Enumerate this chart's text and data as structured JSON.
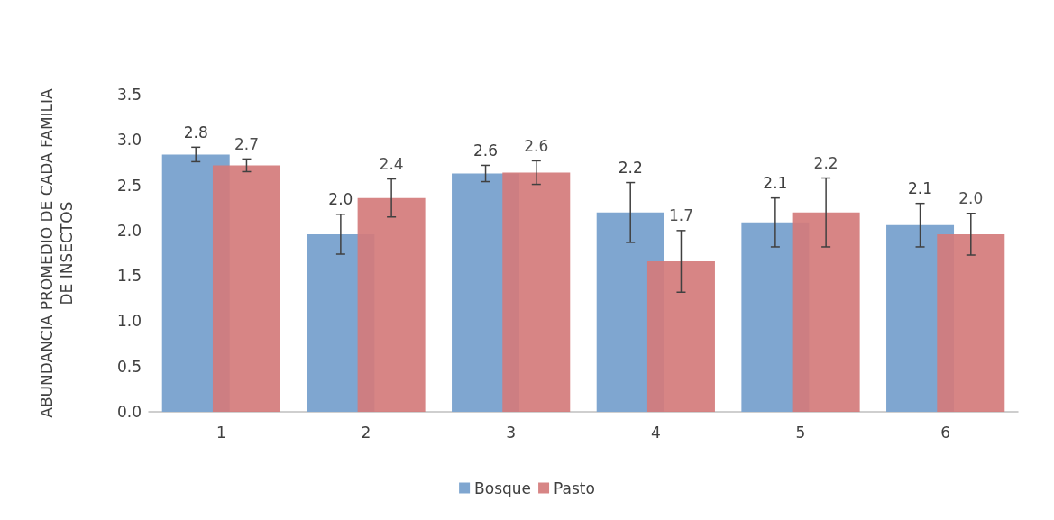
{
  "chart_data": {
    "type": "bar",
    "ylabel": "ABUNDANCIA PROMEDIO DE CADA FAMILIA DE INSECTOS",
    "categories": [
      "1",
      "2",
      "3",
      "4",
      "5",
      "6"
    ],
    "series": [
      {
        "name": "Bosque",
        "color": "#7fa6d0",
        "values": [
          2.84,
          1.96,
          2.63,
          2.2,
          2.09,
          2.06
        ],
        "errors": [
          0.08,
          0.22,
          0.09,
          0.33,
          0.27,
          0.24
        ],
        "value_labels": [
          "2.8",
          "2.0",
          "2.6",
          "2.2",
          "2.1",
          "2.1"
        ]
      },
      {
        "name": "Pasto",
        "color": "#d47b7b",
        "values": [
          2.72,
          2.36,
          2.64,
          1.66,
          2.2,
          1.96
        ],
        "errors": [
          0.07,
          0.21,
          0.13,
          0.34,
          0.38,
          0.23
        ],
        "value_labels": [
          "2.7",
          "2.4",
          "2.6",
          "1.7",
          "2.2",
          "2.0"
        ]
      }
    ],
    "ylim": [
      0,
      3.5
    ],
    "yticks": [
      {
        "value": 0,
        "label": "0.0"
      },
      {
        "value": 0.5,
        "label": "0.5"
      },
      {
        "value": 1,
        "label": "1.0"
      },
      {
        "value": 1.5,
        "label": "1.5"
      },
      {
        "value": 2,
        "label": "2.0"
      },
      {
        "value": 2.5,
        "label": "2.5"
      },
      {
        "value": 3,
        "label": "3.0"
      },
      {
        "value": 3.5,
        "label": "3.5"
      }
    ],
    "grid": false,
    "legend": "bottom"
  }
}
